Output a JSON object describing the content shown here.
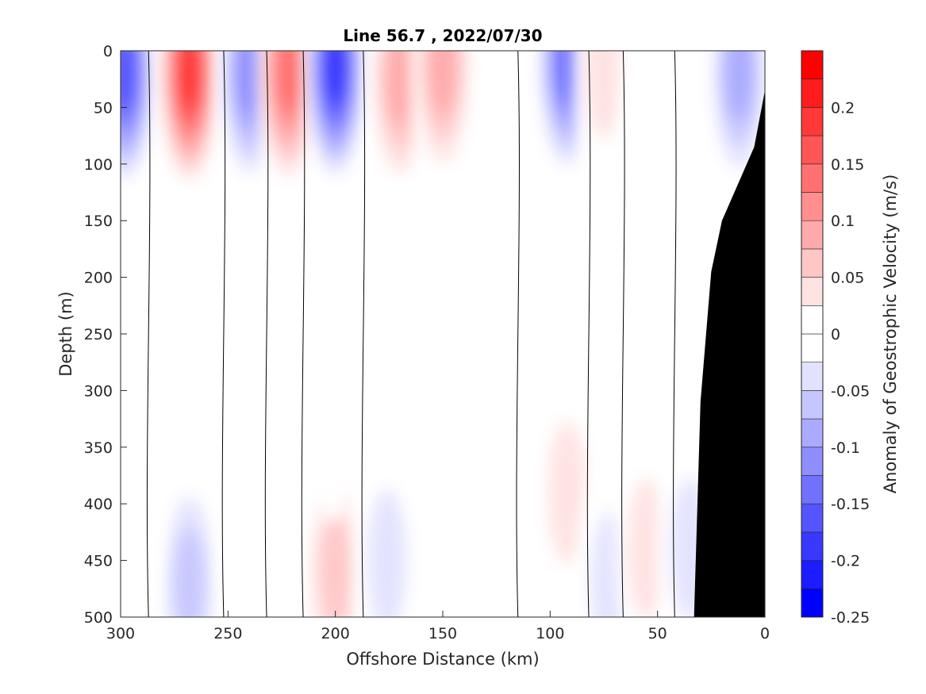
{
  "chart_data": {
    "type": "heatmap",
    "subtype": "filled-contour-section",
    "title": "Line 56.7 , 2022/07/30",
    "xlabel": "Offshore Distance (km)",
    "ylabel": "Depth (m)",
    "colorbar_label": "Anomaly of Geostrophic Velocity (m/s)",
    "xlim": [
      300,
      0
    ],
    "x_reversed": true,
    "ylim": [
      0,
      500
    ],
    "y_reversed": true,
    "x_ticks": [
      "300",
      "250",
      "200",
      "150",
      "100",
      "50",
      "0"
    ],
    "y_ticks": [
      "0",
      "50",
      "100",
      "150",
      "200",
      "250",
      "300",
      "350",
      "400",
      "450",
      "500"
    ],
    "colorbar_ticks": [
      "0.2",
      "0.15",
      "0.1",
      "0.05",
      "0",
      "-0.05",
      "-0.1",
      "-0.15",
      "-0.2",
      "-0.25"
    ],
    "colorbar_range": [
      -0.25,
      0.25
    ],
    "colormap": [
      "#0000ff",
      "#1c1cff",
      "#3838ff",
      "#5555ff",
      "#7171ff",
      "#8e8eff",
      "#aaaaff",
      "#c6c6ff",
      "#e2e2ff",
      "#ffffff",
      "#ffffff",
      "#ffe2e2",
      "#ffc6c6",
      "#ffaaaa",
      "#ff8e8e",
      "#ff7171",
      "#ff5555",
      "#ff3838",
      "#ff1c1c",
      "#ff0000"
    ],
    "grid": false,
    "bathymetry_color": "#000000",
    "bathymetry_profile": [
      {
        "x": 0,
        "depth": 35
      },
      {
        "x": 5,
        "depth": 85
      },
      {
        "x": 20,
        "depth": 150
      },
      {
        "x": 25,
        "depth": 195
      },
      {
        "x": 30,
        "depth": 310
      },
      {
        "x": 33,
        "depth": 500
      }
    ],
    "cores": [
      {
        "x": 298,
        "depth": 20,
        "v": -0.18
      },
      {
        "x": 268,
        "depth": 20,
        "v": 0.2
      },
      {
        "x": 240,
        "depth": 20,
        "v": -0.15
      },
      {
        "x": 222,
        "depth": 20,
        "v": 0.16
      },
      {
        "x": 200,
        "depth": 15,
        "v": -0.2
      },
      {
        "x": 170,
        "depth": 25,
        "v": 0.1
      },
      {
        "x": 150,
        "depth": 15,
        "v": 0.12
      },
      {
        "x": 92,
        "depth": 10,
        "v": -0.16
      },
      {
        "x": 75,
        "depth": 15,
        "v": 0.05
      },
      {
        "x": 52,
        "depth": 60,
        "v": -0.04
      },
      {
        "x": 35,
        "depth": 40,
        "v": 0.04
      },
      {
        "x": 12,
        "depth": 20,
        "v": -0.1
      },
      {
        "x": 268,
        "depth": 470,
        "v": -0.09
      },
      {
        "x": 200,
        "depth": 460,
        "v": 0.09
      },
      {
        "x": 176,
        "depth": 450,
        "v": -0.06
      },
      {
        "x": 220,
        "depth": 300,
        "v": -0.04
      },
      {
        "x": 202,
        "depth": 310,
        "v": 0.04
      },
      {
        "x": 92,
        "depth": 390,
        "v": 0.05
      },
      {
        "x": 72,
        "depth": 470,
        "v": -0.06
      },
      {
        "x": 55,
        "depth": 440,
        "v": 0.05
      },
      {
        "x": 35,
        "depth": 440,
        "v": -0.06
      },
      {
        "x": 295,
        "depth": 400,
        "v": 0.04
      },
      {
        "x": 240,
        "depth": 420,
        "v": 0.03
      },
      {
        "x": 145,
        "depth": 440,
        "v": -0.03
      }
    ]
  }
}
